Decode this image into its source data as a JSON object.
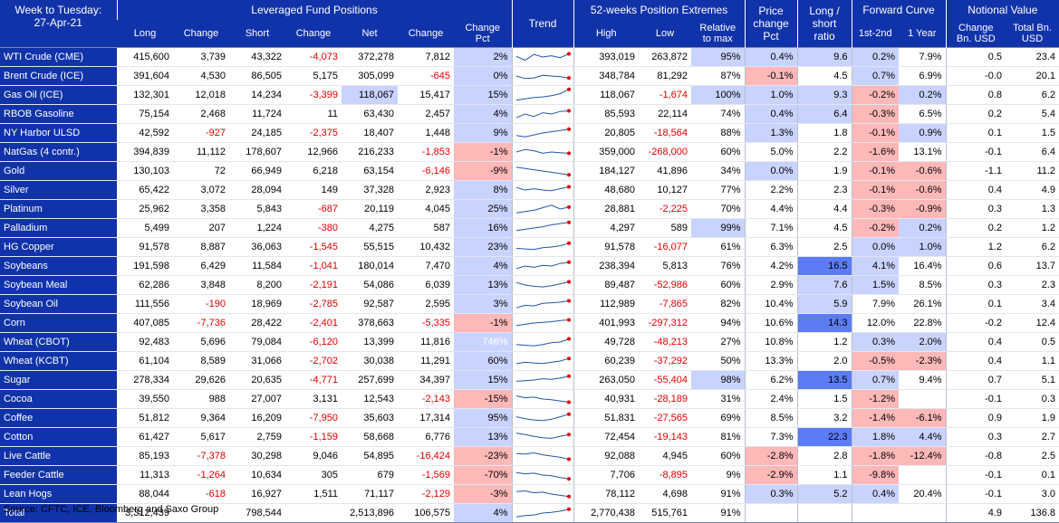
{
  "header": {
    "title_line1": "Week to Tuesday:",
    "title_line2": "27-Apr-21",
    "groups": [
      "Leveraged Fund Positions",
      "Trend",
      "52-weeks Position Extremes",
      "Price change Pct",
      "Long / short ratio",
      "Forward Curve",
      "Notional Value"
    ],
    "subheaders": [
      "Long",
      "Change",
      "Short",
      "Change",
      "Net",
      "Change",
      "Change Pct",
      "High",
      "Low",
      "Relative to max",
      "1st-2nd",
      "1 Year",
      "Change Bn. USD",
      "Total Bn. USD"
    ]
  },
  "colors": {
    "header_bg": "#1133aa",
    "positive_fill": "#c9d3ff",
    "strong_positive_fill": "#5c7cf5",
    "negative_fill": "#ffb8b8",
    "negative_text": "#e00000",
    "trend_line": "#2255aa",
    "trend_marker": "#e00000"
  },
  "rows": [
    {
      "name": "WTI Crude (CME)",
      "long": "415,600",
      "chg_long": "3,739",
      "short": "43,322",
      "chg_short": "-4,073",
      "net": "372,278",
      "chg_net": "7,812",
      "chg_pct": "2%",
      "trend": [
        0.55,
        0.25,
        0.7,
        0.5,
        0.6,
        0.45,
        0.75
      ],
      "high": "393,019",
      "low": "263,872",
      "rel_max": "95%",
      "price_chg": "0.4%",
      "ls_ratio": "9.6",
      "fc_12": "0.2%",
      "fc_1y": "7.9%",
      "nv_chg": "0.5",
      "nv_total": "23.4"
    },
    {
      "name": "Brent Crude (ICE)",
      "long": "391,604",
      "chg_long": "4,530",
      "short": "86,505",
      "chg_short": "5,175",
      "net": "305,099",
      "chg_net": "-645",
      "chg_pct": "0%",
      "trend": [
        0.5,
        0.3,
        0.35,
        0.55,
        0.5,
        0.45,
        0.35
      ],
      "high": "348,784",
      "low": "81,292",
      "rel_max": "87%",
      "price_chg": "-0.1%",
      "ls_ratio": "4.5",
      "fc_12": "0.7%",
      "fc_1y": "6.9%",
      "nv_chg": "-0.0",
      "nv_total": "20.1"
    },
    {
      "name": "Gas Oil (ICE)",
      "long": "132,301",
      "chg_long": "12,018",
      "short": "14,234",
      "chg_short": "-3,399",
      "net": "118,067",
      "chg_net": "15,417",
      "chg_pct": "15%",
      "trend": [
        0.1,
        0.2,
        0.3,
        0.35,
        0.45,
        0.6,
        0.95
      ],
      "high": "118,067",
      "low": "-1,674",
      "rel_max": "100%",
      "price_chg": "1.0%",
      "ls_ratio": "9.3",
      "fc_12": "-0.2%",
      "fc_1y": "0.2%",
      "nv_chg": "0.8",
      "nv_total": "6.2"
    },
    {
      "name": "RBOB Gasoline",
      "long": "75,154",
      "chg_long": "2,468",
      "short": "11,724",
      "chg_short": "11",
      "net": "63,430",
      "chg_net": "2,457",
      "chg_pct": "4%",
      "trend": [
        0.2,
        0.5,
        0.3,
        0.6,
        0.5,
        0.7,
        0.75
      ],
      "high": "85,593",
      "low": "22,114",
      "rel_max": "74%",
      "price_chg": "0.4%",
      "ls_ratio": "6.4",
      "fc_12": "-0.3%",
      "fc_1y": "6.5%",
      "nv_chg": "0.2",
      "nv_total": "5.4"
    },
    {
      "name": "NY Harbor ULSD",
      "long": "42,592",
      "chg_long": "-927",
      "short": "24,185",
      "chg_short": "-2,375",
      "net": "18,407",
      "chg_net": "1,448",
      "chg_pct": "9%",
      "trend": [
        0.3,
        0.2,
        0.35,
        0.5,
        0.6,
        0.7,
        0.8
      ],
      "high": "20,805",
      "low": "-18,564",
      "rel_max": "88%",
      "price_chg": "1.3%",
      "ls_ratio": "1.8",
      "fc_12": "-0.1%",
      "fc_1y": "0.9%",
      "nv_chg": "0.1",
      "nv_total": "1.5"
    },
    {
      "name": "NatGas (4 contr.)",
      "long": "394,839",
      "chg_long": "11,112",
      "short": "178,607",
      "chg_short": "12,966",
      "net": "216,233",
      "chg_net": "-1,853",
      "chg_pct": "-1%",
      "trend": [
        0.5,
        0.7,
        0.6,
        0.4,
        0.5,
        0.45,
        0.4
      ],
      "high": "359,000",
      "low": "-268,000",
      "rel_max": "60%",
      "price_chg": "5.0%",
      "ls_ratio": "2.2",
      "fc_12": "-1.6%",
      "fc_1y": "13.1%",
      "nv_chg": "-0.1",
      "nv_total": "6.4"
    },
    {
      "name": "Gold",
      "long": "130,103",
      "chg_long": "72",
      "short": "66,949",
      "chg_short": "6,218",
      "net": "63,154",
      "chg_net": "-6,146",
      "chg_pct": "-9%",
      "trend": [
        0.8,
        0.7,
        0.6,
        0.5,
        0.4,
        0.3,
        0.2
      ],
      "high": "184,127",
      "low": "41,896",
      "rel_max": "34%",
      "price_chg": "0.0%",
      "ls_ratio": "1.9",
      "fc_12": "-0.1%",
      "fc_1y": "-0.6%",
      "nv_chg": "-1.1",
      "nv_total": "11.2"
    },
    {
      "name": "Silver",
      "long": "65,422",
      "chg_long": "3,072",
      "short": "28,094",
      "chg_short": "149",
      "net": "37,328",
      "chg_net": "2,923",
      "chg_pct": "8%",
      "trend": [
        0.7,
        0.5,
        0.6,
        0.5,
        0.45,
        0.6,
        0.75
      ],
      "high": "48,680",
      "low": "10,127",
      "rel_max": "77%",
      "price_chg": "2.2%",
      "ls_ratio": "2.3",
      "fc_12": "-0.1%",
      "fc_1y": "-0.6%",
      "nv_chg": "0.4",
      "nv_total": "4.9"
    },
    {
      "name": "Platinum",
      "long": "25,962",
      "chg_long": "3,358",
      "short": "5,843",
      "chg_short": "-687",
      "net": "20,119",
      "chg_net": "4,045",
      "chg_pct": "25%",
      "trend": [
        0.2,
        0.3,
        0.4,
        0.6,
        0.8,
        0.5,
        0.65
      ],
      "high": "28,881",
      "low": "-2,225",
      "rel_max": "70%",
      "price_chg": "4.4%",
      "ls_ratio": "4.4",
      "fc_12": "-0.3%",
      "fc_1y": "-0.9%",
      "nv_chg": "0.3",
      "nv_total": "1.3"
    },
    {
      "name": "Palladium",
      "long": "5,499",
      "chg_long": "207",
      "short": "1,224",
      "chg_short": "-380",
      "net": "4,275",
      "chg_net": "587",
      "chg_pct": "16%",
      "trend": [
        0.3,
        0.4,
        0.5,
        0.6,
        0.75,
        0.85,
        0.95
      ],
      "high": "4,297",
      "low": "589",
      "rel_max": "99%",
      "price_chg": "7.1%",
      "ls_ratio": "4.5",
      "fc_12": "-0.2%",
      "fc_1y": "0.2%",
      "nv_chg": "0.2",
      "nv_total": "1.2"
    },
    {
      "name": "HG Copper",
      "long": "91,578",
      "chg_long": "8,887",
      "short": "36,063",
      "chg_short": "-1,545",
      "net": "55,515",
      "chg_net": "10,432",
      "chg_pct": "23%",
      "trend": [
        0.4,
        0.35,
        0.3,
        0.45,
        0.5,
        0.6,
        0.8
      ],
      "high": "91,578",
      "low": "-16,077",
      "rel_max": "61%",
      "price_chg": "6.3%",
      "ls_ratio": "2.5",
      "fc_12": "0.0%",
      "fc_1y": "1.0%",
      "nv_chg": "1.2",
      "nv_total": "6.2"
    },
    {
      "name": "Soybeans",
      "long": "191,598",
      "chg_long": "6,429",
      "short": "11,584",
      "chg_short": "-1,041",
      "net": "180,014",
      "chg_net": "7,470",
      "chg_pct": "4%",
      "trend": [
        0.3,
        0.5,
        0.4,
        0.55,
        0.5,
        0.7,
        0.8
      ],
      "high": "238,394",
      "low": "5,813",
      "rel_max": "76%",
      "price_chg": "4.2%",
      "ls_ratio": "16.5",
      "fc_12": "4.1%",
      "fc_1y": "16.4%",
      "nv_chg": "0.6",
      "nv_total": "13.7"
    },
    {
      "name": "Soybean Meal",
      "long": "62,286",
      "chg_long": "3,848",
      "short": "8,200",
      "chg_short": "-2,191",
      "net": "54,086",
      "chg_net": "6,039",
      "chg_pct": "13%",
      "trend": [
        0.7,
        0.5,
        0.4,
        0.35,
        0.45,
        0.6,
        0.75
      ],
      "high": "89,487",
      "low": "-52,986",
      "rel_max": "60%",
      "price_chg": "2.9%",
      "ls_ratio": "7.6",
      "fc_12": "1.5%",
      "fc_1y": "8.5%",
      "nv_chg": "0.3",
      "nv_total": "2.3"
    },
    {
      "name": "Soybean Oil",
      "long": "111,556",
      "chg_long": "-190",
      "short": "18,969",
      "chg_short": "-2,785",
      "net": "92,587",
      "chg_net": "2,595",
      "chg_pct": "3%",
      "trend": [
        0.2,
        0.4,
        0.35,
        0.55,
        0.6,
        0.65,
        0.75
      ],
      "high": "112,989",
      "low": "-7,865",
      "rel_max": "82%",
      "price_chg": "10.4%",
      "ls_ratio": "5.9",
      "fc_12": "7.9%",
      "fc_1y": "26.1%",
      "nv_chg": "0.1",
      "nv_total": "3.4"
    },
    {
      "name": "Corn",
      "long": "407,085",
      "chg_long": "-7,736",
      "short": "28,422",
      "chg_short": "-2,401",
      "net": "378,663",
      "chg_net": "-5,335",
      "chg_pct": "-1%",
      "trend": [
        0.3,
        0.4,
        0.5,
        0.55,
        0.6,
        0.7,
        0.75
      ],
      "high": "401,993",
      "low": "-297,312",
      "rel_max": "94%",
      "price_chg": "10.6%",
      "ls_ratio": "14.3",
      "fc_12": "12.0%",
      "fc_1y": "22.8%",
      "nv_chg": "-0.2",
      "nv_total": "12.4"
    },
    {
      "name": "Wheat (CBOT)",
      "long": "92,483",
      "chg_long": "5,696",
      "short": "79,084",
      "chg_short": "-6,120",
      "net": "13,399",
      "chg_net": "11,816",
      "chg_pct": "746%",
      "trend": [
        0.3,
        0.25,
        0.2,
        0.3,
        0.45,
        0.5,
        0.75
      ],
      "high": "49,728",
      "low": "-48,213",
      "rel_max": "27%",
      "price_chg": "10.8%",
      "ls_ratio": "1.2",
      "fc_12": "0.3%",
      "fc_1y": "2.0%",
      "nv_chg": "0.4",
      "nv_total": "0.5"
    },
    {
      "name": "Wheat (KCBT)",
      "long": "61,104",
      "chg_long": "8,589",
      "short": "31,066",
      "chg_short": "-2,702",
      "net": "30,038",
      "chg_net": "11,291",
      "chg_pct": "60%",
      "trend": [
        0.3,
        0.4,
        0.35,
        0.3,
        0.4,
        0.5,
        0.7
      ],
      "high": "60,239",
      "low": "-37,292",
      "rel_max": "50%",
      "price_chg": "13.3%",
      "ls_ratio": "2.0",
      "fc_12": "-0.5%",
      "fc_1y": "-2.3%",
      "nv_chg": "0.4",
      "nv_total": "1.1"
    },
    {
      "name": "Sugar",
      "long": "278,334",
      "chg_long": "29,626",
      "short": "20,635",
      "chg_short": "-4,771",
      "net": "257,699",
      "chg_net": "34,397",
      "chg_pct": "15%",
      "trend": [
        0.4,
        0.45,
        0.5,
        0.6,
        0.55,
        0.65,
        0.8
      ],
      "high": "263,050",
      "low": "-55,404",
      "rel_max": "98%",
      "price_chg": "6.2%",
      "ls_ratio": "13.5",
      "fc_12": "0.7%",
      "fc_1y": "9.4%",
      "nv_chg": "0.7",
      "nv_total": "5.1"
    },
    {
      "name": "Cocoa",
      "long": "39,550",
      "chg_long": "988",
      "short": "27,007",
      "chg_short": "3,131",
      "net": "12,543",
      "chg_net": "-2,143",
      "chg_pct": "-15%",
      "trend": [
        0.75,
        0.6,
        0.65,
        0.5,
        0.45,
        0.35,
        0.25
      ],
      "high": "40,931",
      "low": "-28,189",
      "rel_max": "31%",
      "price_chg": "2.4%",
      "ls_ratio": "1.5",
      "fc_12": "-1.2%",
      "fc_1y": "",
      "nv_chg": "-0.1",
      "nv_total": "0.3"
    },
    {
      "name": "Coffee",
      "long": "51,812",
      "chg_long": "9,364",
      "short": "16,209",
      "chg_short": "-7,950",
      "net": "35,603",
      "chg_net": "17,314",
      "chg_pct": "95%",
      "trend": [
        0.6,
        0.45,
        0.35,
        0.3,
        0.4,
        0.6,
        0.8
      ],
      "high": "51,831",
      "low": "-27,565",
      "rel_max": "69%",
      "price_chg": "8.5%",
      "ls_ratio": "3.2",
      "fc_12": "-1.4%",
      "fc_1y": "-6.1%",
      "nv_chg": "0.9",
      "nv_total": "1.9"
    },
    {
      "name": "Cotton",
      "long": "61,427",
      "chg_long": "5,617",
      "short": "2,759",
      "chg_short": "-1,159",
      "net": "58,668",
      "chg_net": "6,776",
      "chg_pct": "13%",
      "trend": [
        0.8,
        0.7,
        0.55,
        0.45,
        0.4,
        0.55,
        0.7
      ],
      "high": "72,454",
      "low": "-19,143",
      "rel_max": "81%",
      "price_chg": "7.3%",
      "ls_ratio": "22.3",
      "fc_12": "1.8%",
      "fc_1y": "4.4%",
      "nv_chg": "0.3",
      "nv_total": "2.7"
    },
    {
      "name": "Live Cattle",
      "long": "85,193",
      "chg_long": "-7,378",
      "short": "30,298",
      "chg_short": "9,046",
      "net": "54,895",
      "chg_net": "-16,424",
      "chg_pct": "-23%",
      "trend": [
        0.7,
        0.65,
        0.75,
        0.6,
        0.5,
        0.4,
        0.25
      ],
      "high": "92,088",
      "low": "4,945",
      "rel_max": "60%",
      "price_chg": "-2.8%",
      "ls_ratio": "2.8",
      "fc_12": "-1.8%",
      "fc_1y": "-12.4%",
      "nv_chg": "-0.8",
      "nv_total": "2.5"
    },
    {
      "name": "Feeder Cattle",
      "long": "11,313",
      "chg_long": "-1,264",
      "short": "10,634",
      "chg_short": "305",
      "net": "679",
      "chg_net": "-1,569",
      "chg_pct": "-70%",
      "trend": [
        0.7,
        0.6,
        0.65,
        0.5,
        0.45,
        0.3,
        0.2
      ],
      "high": "7,706",
      "low": "-8,895",
      "rel_max": "9%",
      "price_chg": "-2.9%",
      "ls_ratio": "1.1",
      "fc_12": "-9.8%",
      "fc_1y": "",
      "nv_chg": "-0.1",
      "nv_total": "0.1"
    },
    {
      "name": "Lean Hogs",
      "long": "88,044",
      "chg_long": "-618",
      "short": "16,927",
      "chg_short": "1,511",
      "net": "71,117",
      "chg_net": "-2,129",
      "chg_pct": "-3%",
      "trend": [
        0.7,
        0.75,
        0.6,
        0.65,
        0.5,
        0.4,
        0.3
      ],
      "high": "78,112",
      "low": "4,698",
      "rel_max": "91%",
      "price_chg": "0.3%",
      "ls_ratio": "5.2",
      "fc_12": "0.4%",
      "fc_1y": "20.4%",
      "nv_chg": "-0.1",
      "nv_total": "3.0"
    }
  ],
  "total": {
    "name": "Total",
    "long": "3,312,439",
    "short": "798,544",
    "net": "2,513,896",
    "chg_net": "106,575",
    "chg_pct": "4%",
    "trend": [
      0.2,
      0.3,
      0.35,
      0.5,
      0.55,
      0.65,
      0.8
    ],
    "high": "2,770,438",
    "low": "515,761",
    "rel_max": "91%",
    "nv_chg": "4.9",
    "nv_total": "136.8"
  },
  "source": "Source: CFTC, ICE, Bloomberg and Saxo Group"
}
